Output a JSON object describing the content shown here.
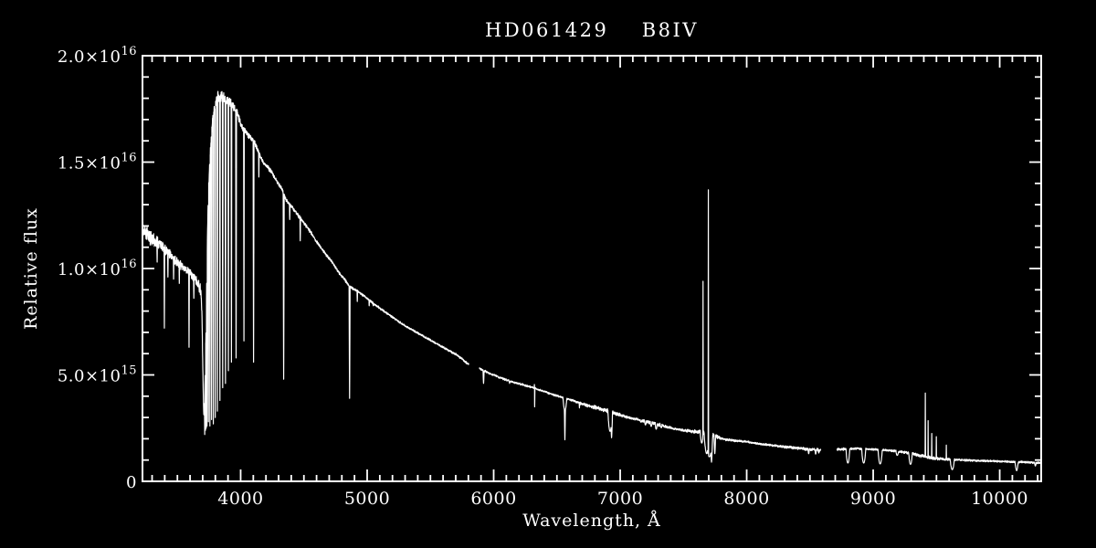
{
  "figure": {
    "background_color": "#000000",
    "foreground_color": "#ffffff"
  },
  "chart_data": {
    "type": "line",
    "title": "HD061429  B8IV",
    "xlabel": "Wavelength, Å",
    "ylabel": "Relative flux",
    "flux_unit": "1e15",
    "xlim": [
      3224,
      10328
    ],
    "ylim_1e15": [
      0,
      20
    ],
    "grid": false,
    "legend": null,
    "line_color": "#ffffff",
    "x_major_ticks": [
      4000,
      5000,
      6000,
      7000,
      8000,
      9000,
      10000
    ],
    "x_minor_step": 100,
    "y_major_ticks": [
      {
        "value": 0,
        "label": "0",
        "sup": ""
      },
      {
        "value": 5,
        "label": "5.0×10",
        "sup": "15"
      },
      {
        "value": 10,
        "label": "1.0×10",
        "sup": "16"
      },
      {
        "value": 15,
        "label": "1.5×10",
        "sup": "16"
      },
      {
        "value": 20,
        "label": "2.0×10",
        "sup": "16"
      }
    ],
    "y_minor_step": 1,
    "gaps_A": [
      [
        5802,
        5888
      ],
      [
        8585,
        8715
      ]
    ],
    "continuum_points": {
      "columns": [
        "wavelength_A",
        "flux_1e15"
      ],
      "rows": [
        [
          3224,
          11.9
        ],
        [
          3300,
          11.4
        ],
        [
          3400,
          10.9
        ],
        [
          3500,
          10.3
        ],
        [
          3600,
          9.8
        ],
        [
          3660,
          9.35
        ],
        [
          3686,
          8.9
        ],
        [
          3695,
          7.5
        ],
        [
          3702,
          5.0
        ],
        [
          3708,
          3.2
        ],
        [
          3714,
          3.6
        ],
        [
          3720,
          5.0
        ],
        [
          3726,
          7.0
        ],
        [
          3732,
          9.4
        ],
        [
          3738,
          11.6
        ],
        [
          3744,
          13.2
        ],
        [
          3752,
          14.5
        ],
        [
          3760,
          15.4
        ],
        [
          3770,
          16.3
        ],
        [
          3780,
          17.0
        ],
        [
          3792,
          17.5
        ],
        [
          3806,
          17.9
        ],
        [
          3822,
          18.05
        ],
        [
          3842,
          18.1
        ],
        [
          3865,
          18.0
        ],
        [
          3890,
          17.9
        ],
        [
          3915,
          17.8
        ],
        [
          3945,
          17.55
        ],
        [
          3975,
          17.3
        ],
        [
          4005,
          16.7
        ],
        [
          4035,
          16.45
        ],
        [
          4070,
          16.2
        ],
        [
          4105,
          16.0
        ],
        [
          4140,
          15.5
        ],
        [
          4177,
          15.0
        ],
        [
          4215,
          14.75
        ],
        [
          4249,
          14.5
        ],
        [
          4285,
          14.1
        ],
        [
          4321,
          13.8
        ],
        [
          4360,
          13.2
        ],
        [
          4422,
          12.75
        ],
        [
          4460,
          12.45
        ],
        [
          4495,
          12.2
        ],
        [
          4530,
          11.9
        ],
        [
          4567,
          11.6
        ],
        [
          4600,
          11.25
        ],
        [
          4639,
          10.95
        ],
        [
          4675,
          10.65
        ],
        [
          4711,
          10.4
        ],
        [
          4745,
          10.1
        ],
        [
          4783,
          9.75
        ],
        [
          4820,
          9.5
        ],
        [
          4856,
          9.2
        ],
        [
          4890,
          9.05
        ],
        [
          4930,
          8.9
        ],
        [
          4965,
          8.75
        ],
        [
          5000,
          8.6
        ],
        [
          5060,
          8.3
        ],
        [
          5120,
          8.05
        ],
        [
          5180,
          7.8
        ],
        [
          5240,
          7.55
        ],
        [
          5300,
          7.3
        ],
        [
          5360,
          7.1
        ],
        [
          5420,
          6.9
        ],
        [
          5480,
          6.7
        ],
        [
          5540,
          6.5
        ],
        [
          5600,
          6.3
        ],
        [
          5660,
          6.1
        ],
        [
          5720,
          5.9
        ],
        [
          5780,
          5.6
        ],
        [
          5802,
          5.5
        ],
        [
          5888,
          5.3
        ],
        [
          5940,
          5.15
        ],
        [
          6000,
          5.0
        ],
        [
          6060,
          4.85
        ],
        [
          6120,
          4.72
        ],
        [
          6180,
          4.62
        ],
        [
          6240,
          4.52
        ],
        [
          6300,
          4.42
        ],
        [
          6360,
          4.3
        ],
        [
          6420,
          4.18
        ],
        [
          6480,
          4.05
        ],
        [
          6540,
          3.95
        ],
        [
          6600,
          3.85
        ],
        [
          6660,
          3.72
        ],
        [
          6720,
          3.6
        ],
        [
          6780,
          3.5
        ],
        [
          6840,
          3.42
        ],
        [
          6900,
          3.32
        ],
        [
          6960,
          3.2
        ],
        [
          7020,
          3.08
        ],
        [
          7080,
          2.98
        ],
        [
          7140,
          2.9
        ],
        [
          7200,
          2.82
        ],
        [
          7260,
          2.74
        ],
        [
          7320,
          2.64
        ],
        [
          7380,
          2.54
        ],
        [
          7440,
          2.46
        ],
        [
          7500,
          2.4
        ],
        [
          7560,
          2.36
        ],
        [
          7620,
          2.32
        ],
        [
          7700,
          2.24
        ],
        [
          7760,
          2.1
        ],
        [
          7820,
          1.98
        ],
        [
          7880,
          1.93
        ],
        [
          7940,
          1.9
        ],
        [
          8000,
          1.86
        ],
        [
          8080,
          1.78
        ],
        [
          8160,
          1.72
        ],
        [
          8240,
          1.66
        ],
        [
          8320,
          1.6
        ],
        [
          8400,
          1.56
        ],
        [
          8480,
          1.51
        ],
        [
          8583,
          1.47
        ],
        [
          8715,
          1.5
        ],
        [
          8860,
          1.54
        ],
        [
          8990,
          1.5
        ],
        [
          9120,
          1.46
        ],
        [
          9250,
          1.36
        ],
        [
          9330,
          1.27
        ],
        [
          9400,
          1.17
        ],
        [
          9460,
          1.1
        ],
        [
          9520,
          1.06
        ],
        [
          9600,
          1.03
        ],
        [
          9700,
          1.0
        ],
        [
          9800,
          0.98
        ],
        [
          9900,
          0.96
        ],
        [
          10000,
          0.94
        ],
        [
          10100,
          0.92
        ],
        [
          10200,
          0.9
        ],
        [
          10328,
          0.87
        ]
      ]
    },
    "absorption_lines": {
      "columns": [
        "center_A",
        "width_A",
        "bottom_flux_1e15",
        "shape_power"
      ],
      "rows": [
        [
          3340,
          4,
          10.3,
          1.4
        ],
        [
          3397,
          5,
          7.2,
          1.2
        ],
        [
          3425,
          4,
          9.6,
          1.4
        ],
        [
          3470,
          4,
          9.5,
          1.4
        ],
        [
          3515,
          4,
          9.3,
          1.4
        ],
        [
          3592,
          5,
          6.3,
          1.2
        ],
        [
          3630,
          4,
          8.6,
          1.4
        ],
        [
          3716,
          4,
          2.2,
          1.2
        ],
        [
          3722,
          4,
          2.4,
          1.2
        ],
        [
          3728,
          4,
          2.5,
          1.2
        ],
        [
          3734,
          5,
          2.6,
          1.2
        ],
        [
          3745,
          5,
          2.8,
          1.2
        ],
        [
          3757,
          5,
          2.6,
          1.2
        ],
        [
          3770,
          5,
          2.9,
          1.2
        ],
        [
          3784,
          5,
          2.7,
          1.2
        ],
        [
          3799,
          6,
          3.0,
          1.2
        ],
        [
          3816,
          6,
          3.3,
          1.2
        ],
        [
          3836,
          7,
          3.8,
          1.2
        ],
        [
          3858,
          6,
          4.4,
          1.2
        ],
        [
          3880,
          7,
          4.6,
          1.2
        ],
        [
          3903,
          6,
          5.2,
          1.2
        ],
        [
          3927,
          6,
          5.6,
          1.2
        ],
        [
          3964,
          7,
          5.8,
          1.2
        ],
        [
          4026,
          5,
          6.6,
          1.3
        ],
        [
          4102,
          7,
          5.6,
          1.2
        ],
        [
          4144,
          4,
          14.3,
          1.5
        ],
        [
          4340,
          8,
          4.8,
          1.2
        ],
        [
          4388,
          4,
          12.3,
          1.5
        ],
        [
          4471,
          4,
          11.3,
          1.5
        ],
        [
          4861,
          8,
          3.9,
          1.2
        ],
        [
          4922,
          4,
          8.45,
          1.5
        ],
        [
          5016,
          4,
          8.25,
          1.5
        ],
        [
          5048,
          3,
          8.25,
          1.5
        ],
        [
          5920,
          8,
          4.6,
          1.5
        ],
        [
          6126,
          4,
          4.6,
          1.6
        ],
        [
          6324,
          4,
          3.5,
          1.2
        ],
        [
          6563,
          30,
          3.35,
          2.2
        ],
        [
          6563,
          10,
          1.95,
          1.3
        ],
        [
          6678,
          4,
          3.45,
          1.5
        ],
        [
          6920,
          35,
          2.35,
          2.0
        ],
        [
          6932,
          15,
          2.05,
          1.4
        ],
        [
          7165,
          12,
          2.78,
          2
        ],
        [
          7200,
          14,
          2.65,
          2
        ],
        [
          7245,
          14,
          2.58,
          2
        ],
        [
          7285,
          16,
          2.45,
          2
        ],
        [
          7325,
          12,
          2.52,
          2
        ],
        [
          7645,
          25,
          1.8,
          2
        ],
        [
          7683,
          40,
          1.3,
          1.8
        ],
        [
          7705,
          55,
          1.15,
          2
        ],
        [
          7722,
          18,
          0.9,
          1.4
        ],
        [
          7748,
          12,
          1.3,
          1.6
        ],
        [
          8227,
          12,
          1.74,
          2
        ],
        [
          8490,
          10,
          1.3,
          1.8
        ],
        [
          8545,
          10,
          1.28,
          1.8
        ],
        [
          8570,
          8,
          1.33,
          1.8
        ],
        [
          8800,
          30,
          0.86,
          2.2
        ],
        [
          8925,
          32,
          0.86,
          2.2
        ],
        [
          9055,
          34,
          0.82,
          2.2
        ],
        [
          9190,
          20,
          1.22,
          2.2
        ],
        [
          9295,
          28,
          0.8,
          2.2
        ],
        [
          9625,
          34,
          0.55,
          2.0
        ],
        [
          10134,
          26,
          0.5,
          1.6
        ],
        [
          10282,
          12,
          0.72,
          1.8
        ]
      ]
    },
    "emission_spikes": {
      "columns": [
        "center_A",
        "peak_flux_1e15",
        "width_A"
      ],
      "rows": [
        [
          6322,
          4.55,
          3
        ],
        [
          7655,
          9.4,
          4
        ],
        [
          7697,
          13.7,
          4
        ],
        [
          9412,
          4.15,
          4
        ],
        [
          9434,
          2.85,
          3
        ],
        [
          9463,
          2.25,
          3
        ],
        [
          9499,
          2.1,
          3
        ],
        [
          9578,
          1.7,
          3
        ]
      ]
    },
    "noise_profile": {
      "columns": [
        "wavelength_A",
        "amplitude_1e15"
      ],
      "rows": [
        [
          3224,
          0.5
        ],
        [
          3300,
          0.4
        ],
        [
          3400,
          0.3
        ],
        [
          3550,
          0.22
        ],
        [
          3650,
          0.25
        ],
        [
          3720,
          0.35
        ],
        [
          3800,
          0.3
        ],
        [
          3900,
          0.28
        ],
        [
          4000,
          0.18
        ],
        [
          4150,
          0.12
        ],
        [
          4300,
          0.1
        ],
        [
          4600,
          0.08
        ],
        [
          5000,
          0.06
        ],
        [
          5400,
          0.05
        ],
        [
          5800,
          0.06
        ],
        [
          6200,
          0.05
        ],
        [
          6600,
          0.05
        ],
        [
          6930,
          0.12
        ],
        [
          7100,
          0.06
        ],
        [
          7250,
          0.1
        ],
        [
          7450,
          0.05
        ],
        [
          7700,
          0.14
        ],
        [
          7850,
          0.06
        ],
        [
          8100,
          0.05
        ],
        [
          8450,
          0.08
        ],
        [
          8800,
          0.06
        ],
        [
          9100,
          0.05
        ],
        [
          9420,
          0.09
        ],
        [
          9650,
          0.06
        ],
        [
          10000,
          0.05
        ],
        [
          10328,
          0.06
        ]
      ]
    }
  }
}
